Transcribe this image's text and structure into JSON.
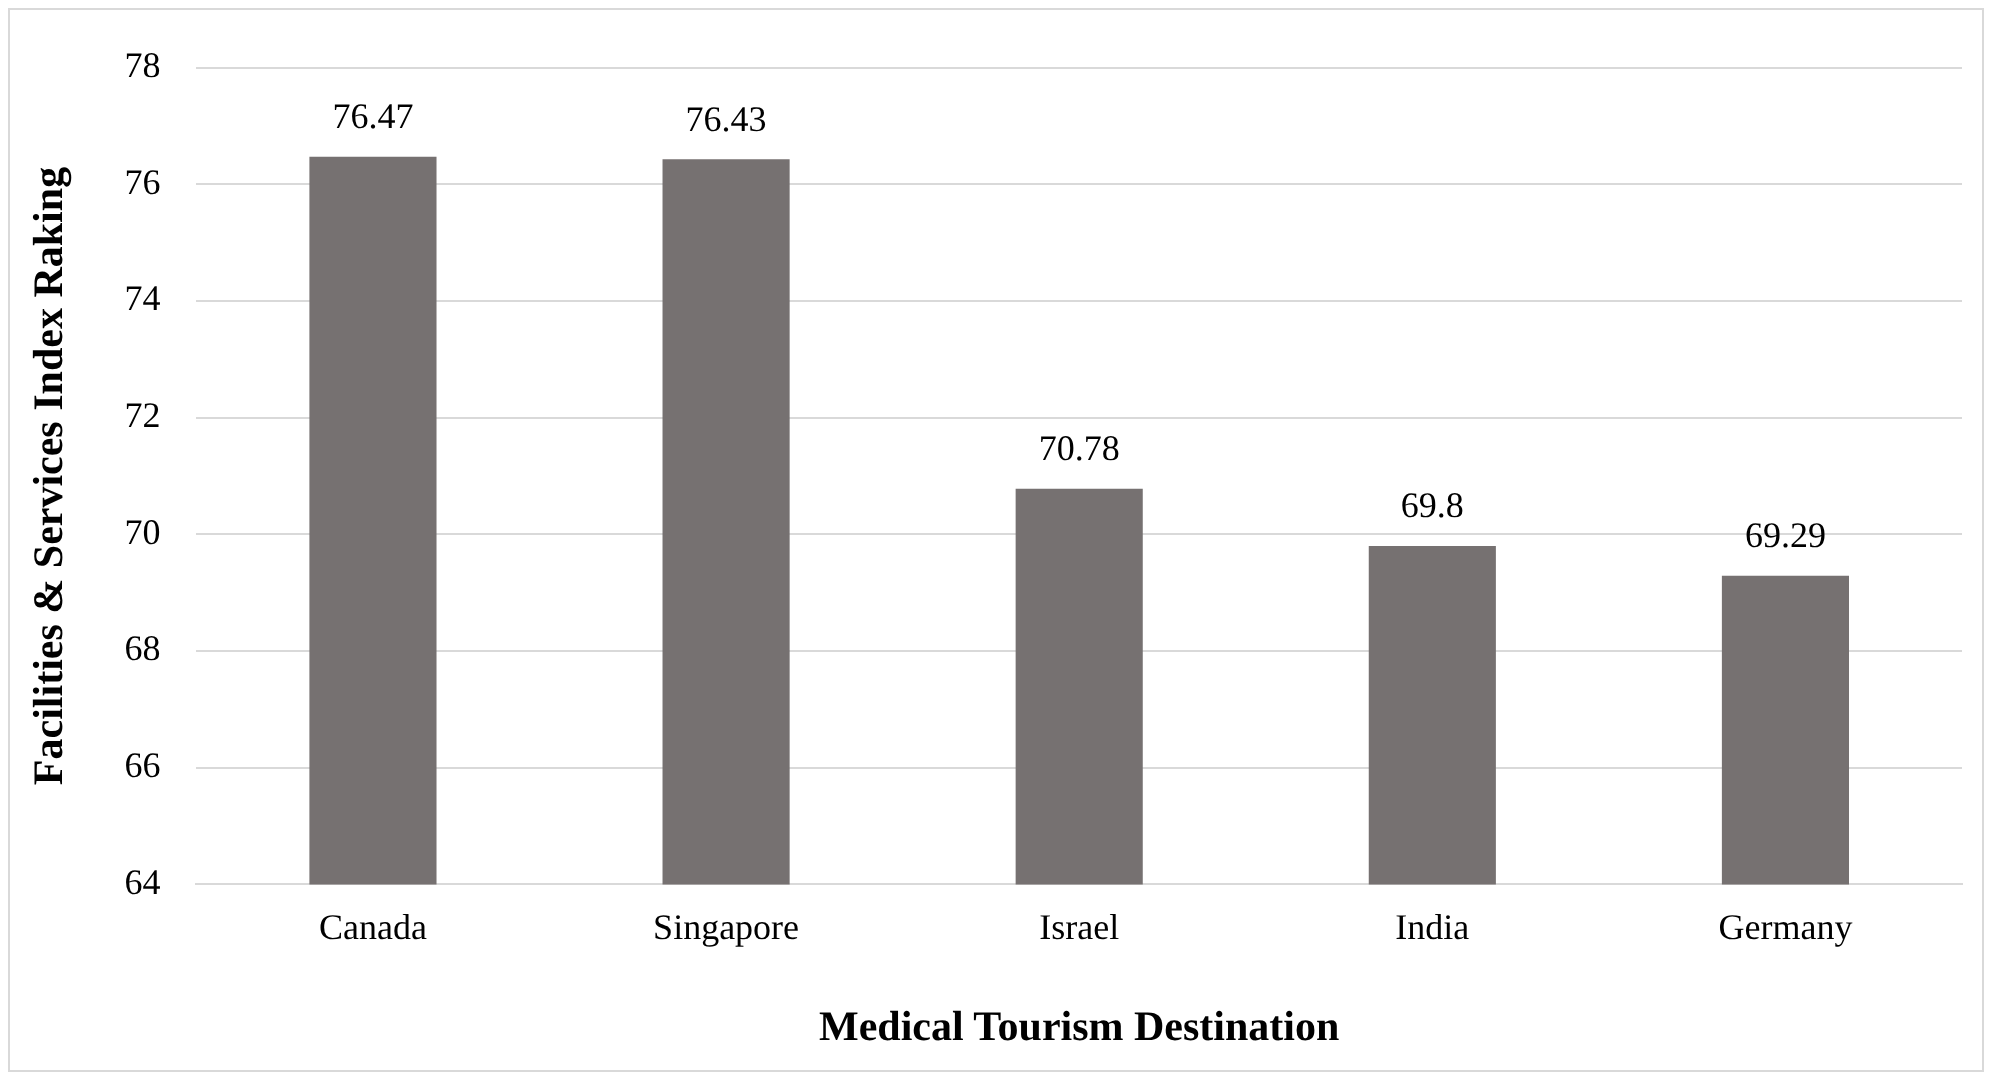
{
  "chart_data": {
    "type": "bar",
    "xlabel": "Medical Tourism Destination",
    "ylabel": "Facilities & Services Index Raking",
    "categories": [
      "Canada",
      "Singapore",
      "Israel",
      "India",
      "Germany"
    ],
    "values": [
      76.47,
      76.43,
      70.78,
      69.8,
      69.29
    ],
    "color": "#767171",
    "ylim": [
      64,
      78
    ],
    "yticks": [
      64,
      66,
      68,
      70,
      72,
      74,
      76,
      78
    ],
    "grid": "y",
    "data_labels": true,
    "legend": false
  }
}
